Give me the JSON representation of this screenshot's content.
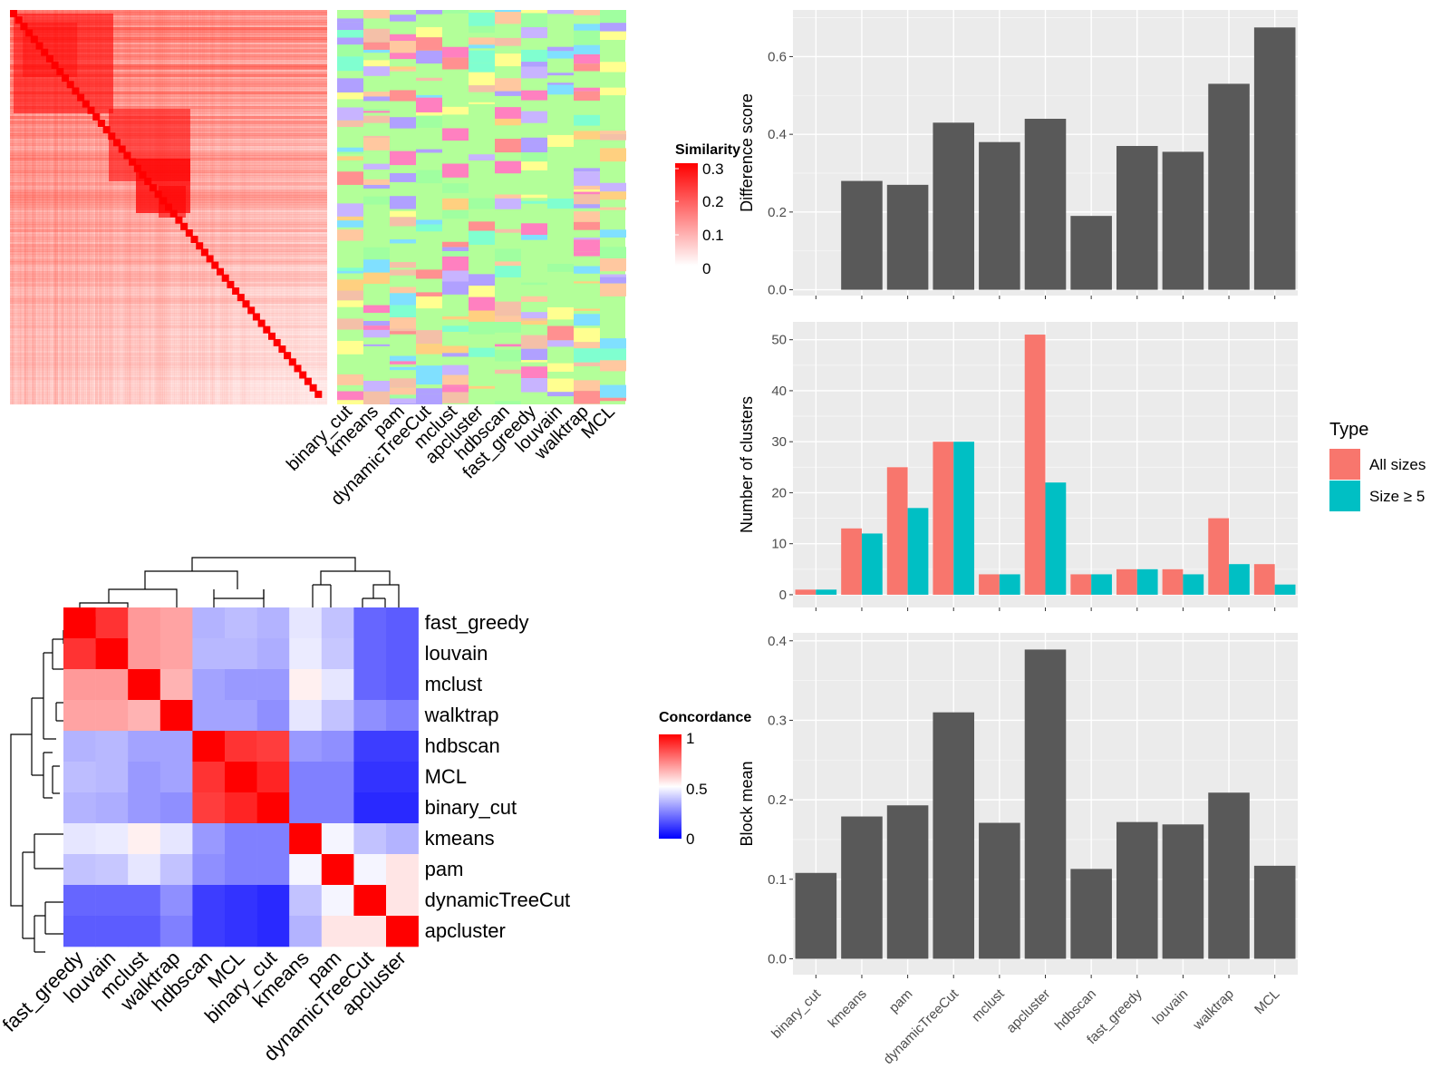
{
  "similarity_panel": {
    "legend_title": "Similarity",
    "legend_ticks": [
      "0.3",
      "0.2",
      "0.1",
      "0"
    ],
    "methods": [
      "binary_cut",
      "kmeans",
      "pam",
      "dynamicTreeCut",
      "mclust",
      "apcluster",
      "hdbscan",
      "fast_greedy",
      "louvain",
      "walktrap",
      "MCL"
    ],
    "colors": {
      "low": "#ffffff",
      "high": "#ff0000",
      "background": "#b3ff99"
    }
  },
  "concordance_panel": {
    "legend_title": "Concordance",
    "legend_ticks": [
      "1",
      "0.5",
      "0"
    ],
    "colors": {
      "low": "#0000ff",
      "mid": "#ffffff",
      "high": "#ff0000"
    },
    "row_labels": [
      "fast_greedy",
      "louvain",
      "mclust",
      "walktrap",
      "hdbscan",
      "MCL",
      "binary_cut",
      "kmeans",
      "pam",
      "dynamicTreeCut",
      "apcluster"
    ],
    "col_labels": [
      "fast_greedy",
      "louvain",
      "mclust",
      "walktrap",
      "hdbscan",
      "MCL",
      "binary_cut",
      "kmeans",
      "pam",
      "dynamicTreeCut",
      "apcluster"
    ],
    "matrix": [
      [
        1.0,
        0.9,
        0.7,
        0.68,
        0.35,
        0.37,
        0.35,
        0.45,
        0.38,
        0.2,
        0.18
      ],
      [
        0.9,
        1.0,
        0.7,
        0.68,
        0.36,
        0.36,
        0.34,
        0.46,
        0.39,
        0.2,
        0.18
      ],
      [
        0.7,
        0.7,
        1.0,
        0.65,
        0.32,
        0.3,
        0.3,
        0.53,
        0.45,
        0.2,
        0.18
      ],
      [
        0.68,
        0.68,
        0.65,
        1.0,
        0.32,
        0.32,
        0.28,
        0.45,
        0.38,
        0.28,
        0.25
      ],
      [
        0.35,
        0.36,
        0.32,
        0.32,
        1.0,
        0.9,
        0.88,
        0.3,
        0.28,
        0.12,
        0.12
      ],
      [
        0.37,
        0.36,
        0.3,
        0.32,
        0.9,
        1.0,
        0.93,
        0.25,
        0.25,
        0.1,
        0.1
      ],
      [
        0.35,
        0.34,
        0.3,
        0.28,
        0.88,
        0.93,
        1.0,
        0.25,
        0.25,
        0.08,
        0.08
      ],
      [
        0.45,
        0.46,
        0.53,
        0.45,
        0.3,
        0.25,
        0.25,
        1.0,
        0.48,
        0.38,
        0.35
      ],
      [
        0.38,
        0.39,
        0.45,
        0.38,
        0.28,
        0.25,
        0.25,
        0.48,
        1.0,
        0.48,
        0.55
      ],
      [
        0.2,
        0.2,
        0.2,
        0.28,
        0.12,
        0.1,
        0.08,
        0.38,
        0.48,
        1.0,
        0.55
      ],
      [
        0.18,
        0.18,
        0.18,
        0.25,
        0.12,
        0.1,
        0.08,
        0.35,
        0.55,
        0.55,
        1.0
      ]
    ]
  },
  "chart_data": [
    {
      "type": "bar",
      "categories": [
        "binary_cut",
        "kmeans",
        "pam",
        "dynamicTreeCut",
        "mclust",
        "apcluster",
        "hdbscan",
        "fast_greedy",
        "louvain",
        "walktrap",
        "MCL"
      ],
      "values": [
        0,
        0.28,
        0.27,
        0.43,
        0.38,
        0.44,
        0.19,
        0.37,
        0.355,
        0.53,
        0.675
      ],
      "ylabel": "Difference score",
      "ylim": [
        -0.015,
        0.72
      ],
      "yticks": [
        "0.0",
        "0.2",
        "0.4",
        "0.6"
      ],
      "bar_color": "#595959",
      "grid": true
    },
    {
      "type": "bar",
      "categories": [
        "binary_cut",
        "kmeans",
        "pam",
        "dynamicTreeCut",
        "mclust",
        "apcluster",
        "hdbscan",
        "fast_greedy",
        "louvain",
        "walktrap",
        "MCL"
      ],
      "series": [
        {
          "name": "All sizes",
          "values": [
            1,
            13,
            25,
            30,
            4,
            51,
            4,
            5,
            5,
            15,
            6
          ],
          "color": "#f8766d"
        },
        {
          "name": "Size ≥ 5",
          "values": [
            1,
            12,
            17,
            30,
            4,
            22,
            4,
            5,
            4,
            6,
            2
          ],
          "color": "#00bfc4"
        }
      ],
      "ylabel": "Number of clusters",
      "ylim": [
        -2.5,
        53.5
      ],
      "yticks": [
        "0",
        "10",
        "20",
        "30",
        "40",
        "50"
      ],
      "legend_title": "Type",
      "legend_position": "right",
      "grid": true
    },
    {
      "type": "bar",
      "categories": [
        "binary_cut",
        "kmeans",
        "pam",
        "dynamicTreeCut",
        "mclust",
        "apcluster",
        "hdbscan",
        "fast_greedy",
        "louvain",
        "walktrap",
        "MCL"
      ],
      "values": [
        0.108,
        0.179,
        0.193,
        0.31,
        0.171,
        0.389,
        0.113,
        0.172,
        0.169,
        0.209,
        0.117
      ],
      "ylabel": "Block mean",
      "ylim": [
        -0.02,
        0.41
      ],
      "yticks": [
        "0.0",
        "0.1",
        "0.2",
        "0.3",
        "0.4"
      ],
      "bar_color": "#595959",
      "grid": true
    }
  ]
}
